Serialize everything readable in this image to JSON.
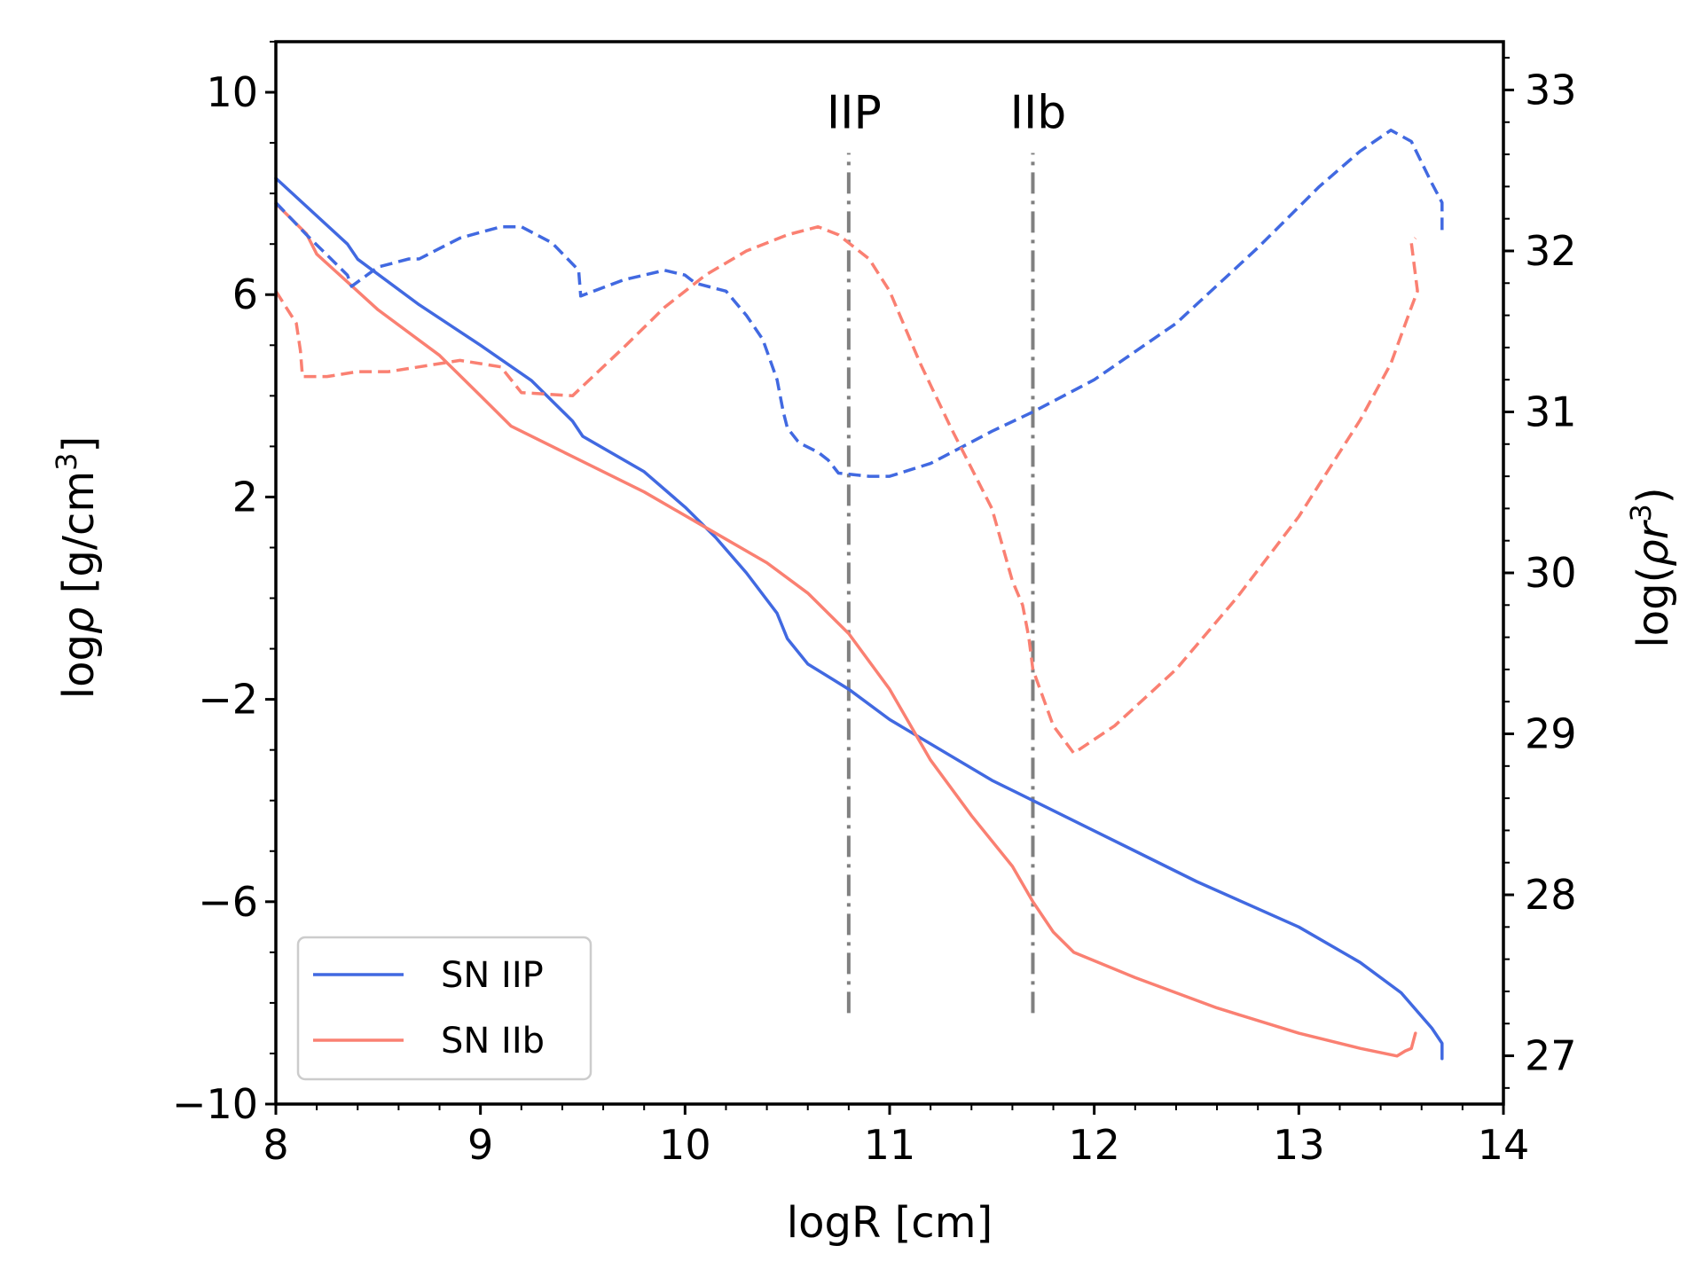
{
  "chart_data": {
    "type": "line",
    "xlabel": "logR  [cm]",
    "ylabel_left": "logρ  [g/cm³]",
    "ylabel_right": "log(ρr³)",
    "xlim": [
      8,
      14
    ],
    "ylim_left": [
      -10,
      11
    ],
    "ylim_right": [
      26.7,
      33.3
    ],
    "x_ticks": [
      8,
      9,
      10,
      11,
      12,
      13,
      14
    ],
    "y_left_ticks": [
      10,
      6,
      2,
      -2,
      -6,
      -10
    ],
    "y_left_tick_labels": [
      "10",
      "6",
      "2",
      "−2",
      "−6",
      "−10"
    ],
    "y_right_ticks": [
      33,
      32,
      31,
      30,
      29,
      28,
      27
    ],
    "legend": {
      "position": "lower-left",
      "entries": [
        "SN IIP",
        "SN IIb"
      ]
    },
    "colors": {
      "SN IIP": "#4169e1",
      "SN IIb": "#fa8072",
      "marker_line": "#808080",
      "axes": "#000000"
    },
    "annotations": [
      {
        "label": "IIP",
        "x": 10.8,
        "y_from": -8.2,
        "y_to": 8.8
      },
      {
        "label": "IIb",
        "x": 11.7,
        "y_from": -8.2,
        "y_to": 8.8
      }
    ],
    "series": [
      {
        "name": "SN IIP",
        "axis": "left",
        "style": "solid",
        "x": [
          8.0,
          8.35,
          8.4,
          8.7,
          9.0,
          9.25,
          9.45,
          9.5,
          9.8,
          10.0,
          10.15,
          10.3,
          10.45,
          10.5,
          10.6,
          10.8,
          11.0,
          11.5,
          12.0,
          12.5,
          13.0,
          13.3,
          13.5,
          13.65,
          13.7,
          13.7
        ],
        "y": [
          8.3,
          7.0,
          6.7,
          5.8,
          5.0,
          4.3,
          3.5,
          3.2,
          2.5,
          1.8,
          1.2,
          0.5,
          -0.3,
          -0.8,
          -1.3,
          -1.8,
          -2.4,
          -3.6,
          -4.6,
          -5.6,
          -6.5,
          -7.2,
          -7.8,
          -8.5,
          -8.8,
          -9.1
        ]
      },
      {
        "name": "SN IIb",
        "axis": "left",
        "style": "solid",
        "x": [
          8.0,
          8.15,
          8.2,
          8.5,
          8.8,
          9.0,
          9.15,
          9.45,
          9.8,
          10.1,
          10.4,
          10.6,
          10.8,
          11.0,
          11.2,
          11.4,
          11.6,
          11.7,
          11.8,
          11.9,
          12.2,
          12.6,
          13.0,
          13.3,
          13.48,
          13.52,
          13.55,
          13.57
        ],
        "y": [
          7.8,
          7.2,
          6.8,
          5.7,
          4.8,
          4.0,
          3.4,
          2.8,
          2.1,
          1.4,
          0.7,
          0.1,
          -0.7,
          -1.8,
          -3.2,
          -4.3,
          -5.3,
          -6.0,
          -6.6,
          -7.0,
          -7.5,
          -8.1,
          -8.6,
          -8.9,
          -9.05,
          -8.95,
          -8.9,
          -8.6
        ]
      },
      {
        "name": "SN IIP log(ρr³)",
        "axis": "right",
        "style": "dashed",
        "x": [
          8.0,
          8.15,
          8.35,
          8.37,
          8.5,
          8.65,
          8.7,
          8.9,
          9.1,
          9.2,
          9.35,
          9.48,
          9.49,
          9.7,
          9.9,
          10.0,
          10.05,
          10.2,
          10.3,
          10.38,
          10.45,
          10.48,
          10.5,
          10.55,
          10.57,
          10.65,
          10.7,
          10.75,
          10.9,
          11.0,
          11.2,
          11.5,
          11.7,
          12.0,
          12.4,
          12.8,
          13.1,
          13.3,
          13.45,
          13.55,
          13.65,
          13.7,
          13.7
        ],
        "y": [
          32.3,
          32.1,
          31.85,
          31.78,
          31.9,
          31.95,
          31.95,
          32.08,
          32.15,
          32.15,
          32.05,
          31.88,
          31.72,
          31.82,
          31.88,
          31.85,
          31.8,
          31.75,
          31.6,
          31.45,
          31.2,
          31.0,
          30.9,
          30.82,
          30.8,
          30.75,
          30.7,
          30.62,
          30.6,
          30.6,
          30.68,
          30.88,
          31.0,
          31.2,
          31.55,
          32.02,
          32.4,
          32.62,
          32.75,
          32.68,
          32.42,
          32.3,
          32.12
        ]
      },
      {
        "name": "SN IIb log(ρr³)",
        "axis": "right",
        "style": "dashed",
        "x": [
          8.0,
          8.1,
          8.12,
          8.13,
          8.25,
          8.4,
          8.55,
          8.7,
          8.9,
          9.1,
          9.2,
          9.45,
          9.7,
          9.9,
          10.1,
          10.3,
          10.5,
          10.65,
          10.75,
          10.9,
          11.0,
          11.15,
          11.3,
          11.5,
          11.6,
          11.65,
          11.68,
          11.7,
          11.8,
          11.9,
          12.1,
          12.4,
          12.7,
          13.0,
          13.3,
          13.45,
          13.55,
          13.58,
          13.55,
          13.57
        ],
        "y": [
          31.75,
          31.55,
          31.38,
          31.22,
          31.22,
          31.25,
          31.25,
          31.28,
          31.32,
          31.28,
          31.12,
          31.1,
          31.4,
          31.65,
          31.85,
          32.0,
          32.1,
          32.15,
          32.1,
          31.95,
          31.75,
          31.3,
          30.9,
          30.4,
          29.95,
          29.8,
          29.6,
          29.4,
          29.05,
          28.88,
          29.05,
          29.4,
          29.85,
          30.35,
          30.95,
          31.3,
          31.65,
          31.75,
          32.05,
          32.08
        ]
      }
    ]
  }
}
